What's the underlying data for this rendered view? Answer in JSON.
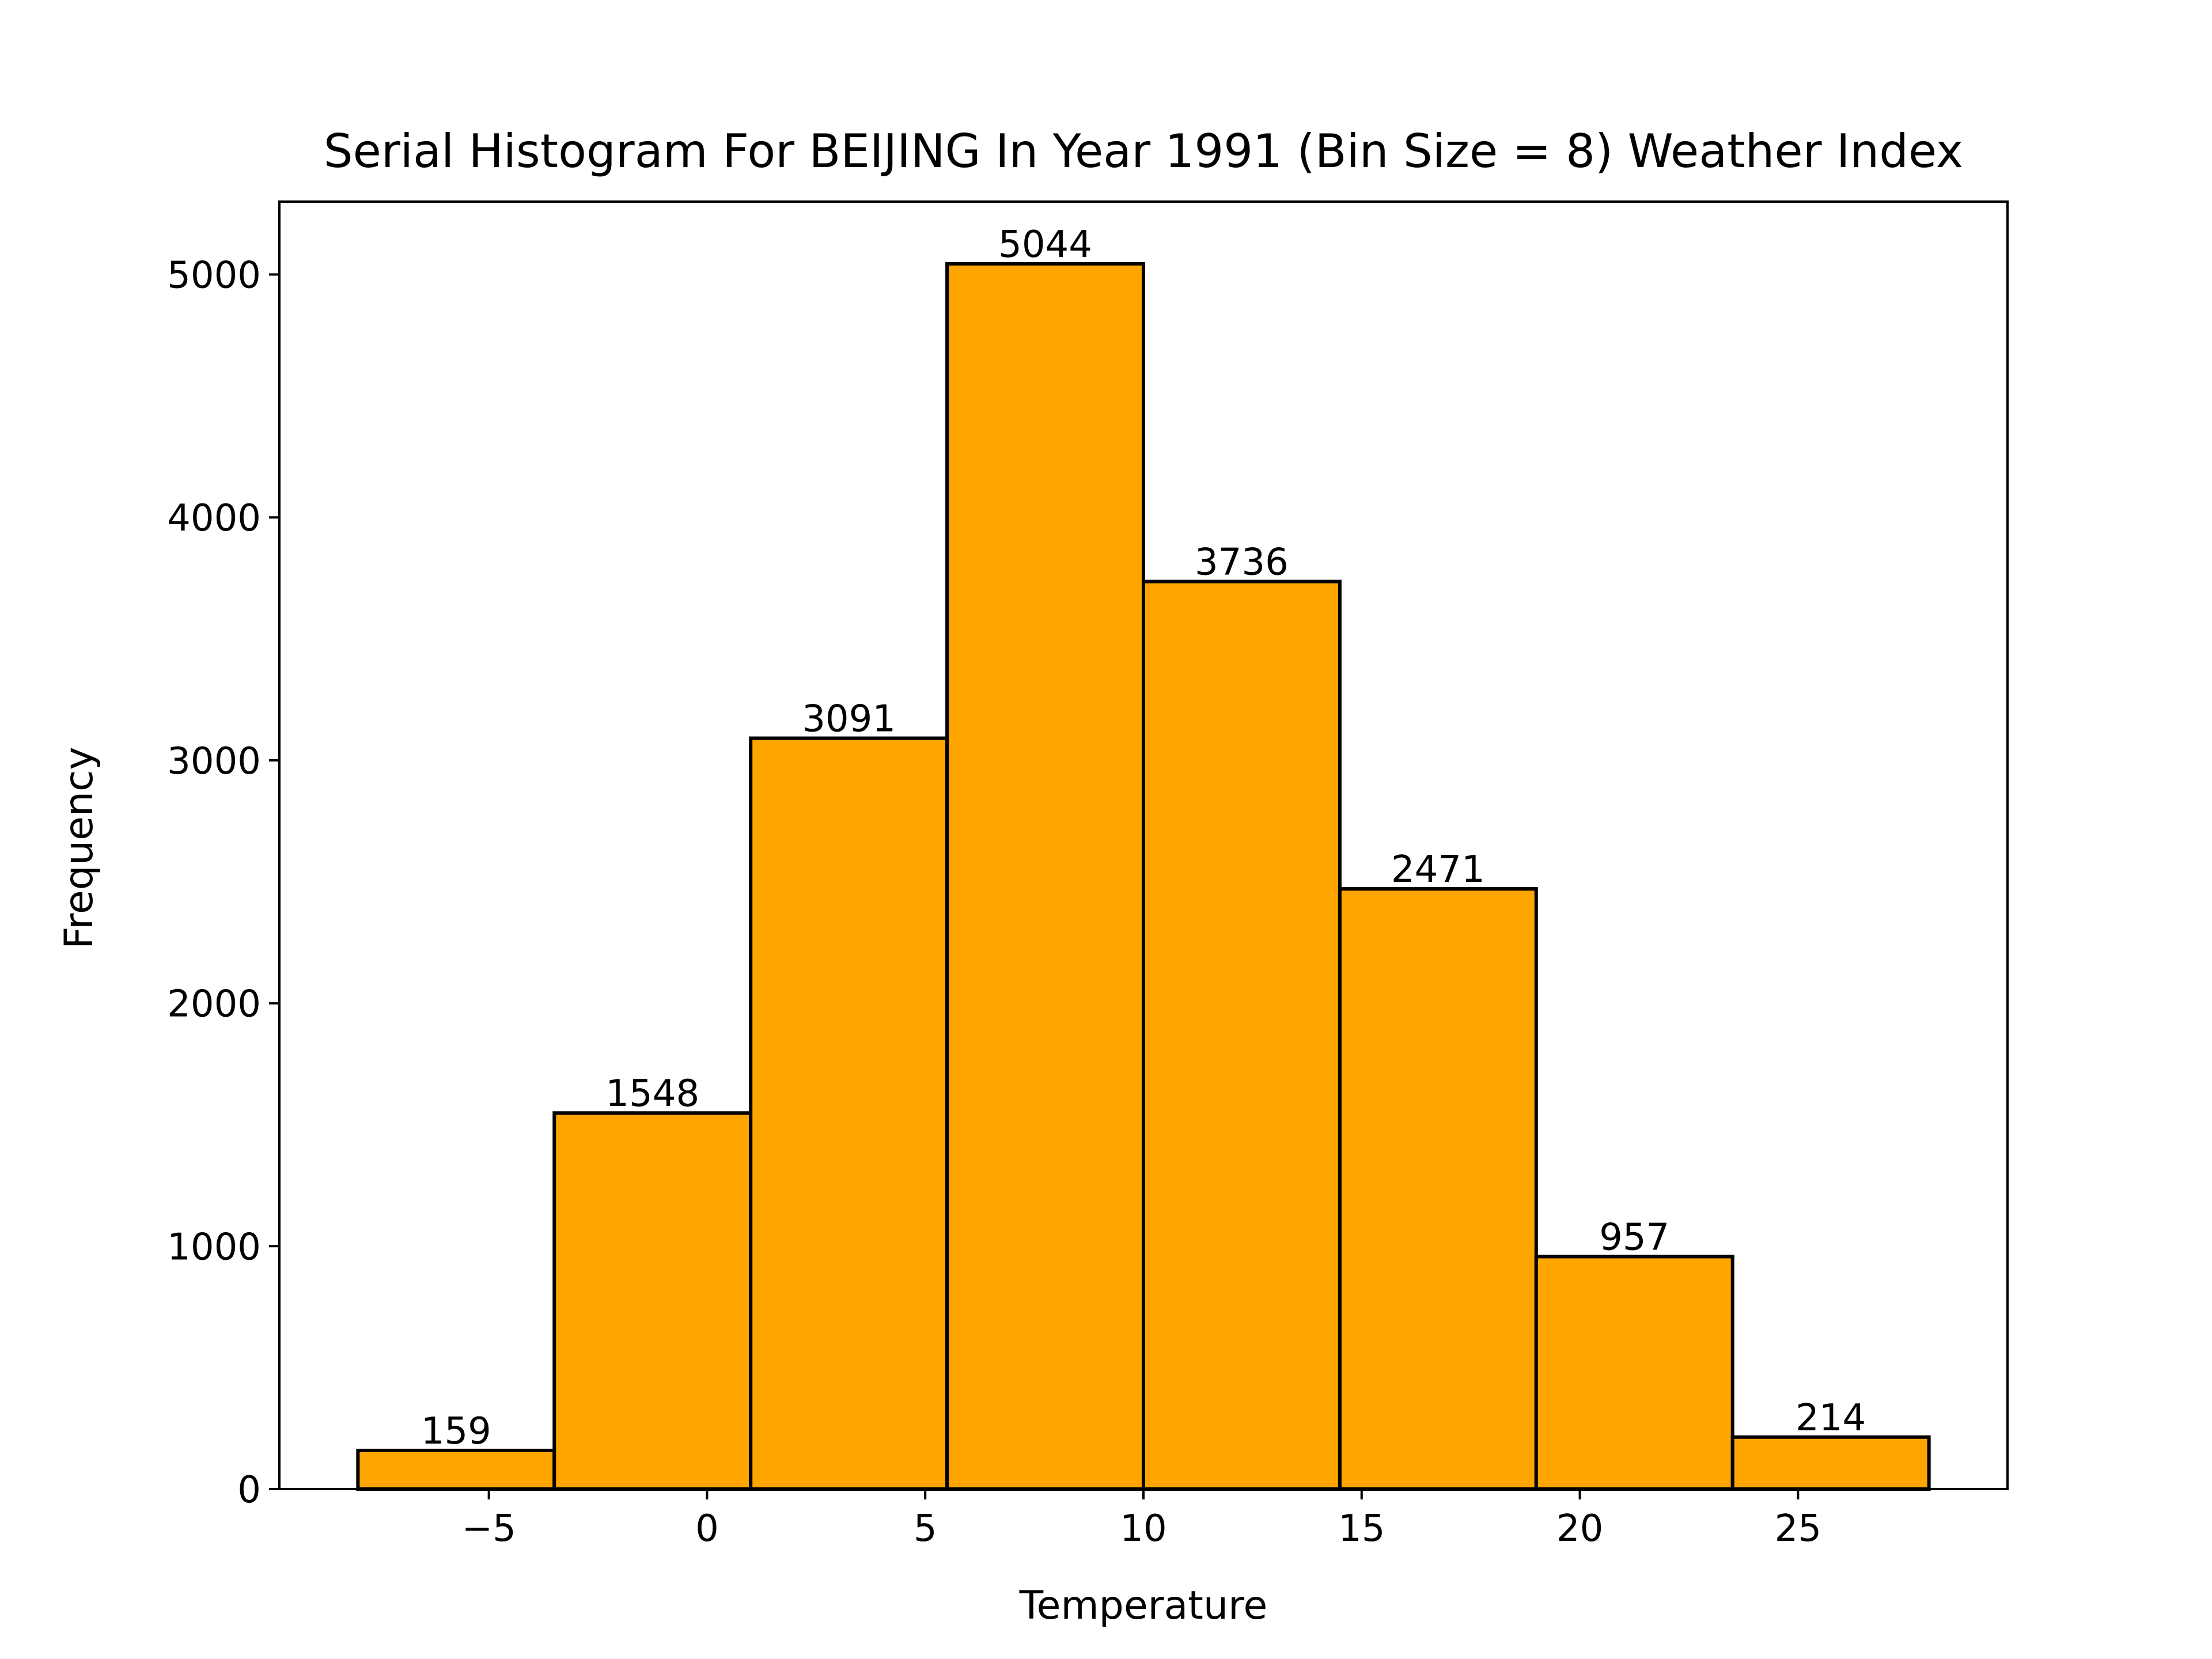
{
  "chart_data": {
    "type": "bar",
    "title": "Serial Histogram For BEIJING In Year 1991 (Bin Size = 8) Weather Index",
    "xlabel": "Temperature",
    "ylabel": "Frequency",
    "bins": [
      {
        "start": -8.0,
        "end": -3.5,
        "value": 159
      },
      {
        "start": -3.5,
        "end": 1.0,
        "value": 1548
      },
      {
        "start": 1.0,
        "end": 5.5,
        "value": 3091
      },
      {
        "start": 5.5,
        "end": 10.0,
        "value": 5044
      },
      {
        "start": 10.0,
        "end": 14.5,
        "value": 3736
      },
      {
        "start": 14.5,
        "end": 19.0,
        "value": 2471
      },
      {
        "start": 19.0,
        "end": 23.5,
        "value": 957
      },
      {
        "start": 23.5,
        "end": 28.0,
        "value": 214
      }
    ],
    "xlim": [
      -9.8,
      29.8
    ],
    "ylim": [
      0,
      5300
    ],
    "xticks": [
      -5,
      0,
      5,
      10,
      15,
      20,
      25
    ],
    "xtick_labels": [
      "−5",
      "0",
      "5",
      "10",
      "15",
      "20",
      "25"
    ],
    "yticks": [
      0,
      1000,
      2000,
      3000,
      4000,
      5000
    ],
    "ytick_labels": [
      "0",
      "1000",
      "2000",
      "3000",
      "4000",
      "5000"
    ],
    "grid": false,
    "colors": {
      "bar_fill": "#FFA500",
      "bar_edge": "#000000"
    }
  }
}
